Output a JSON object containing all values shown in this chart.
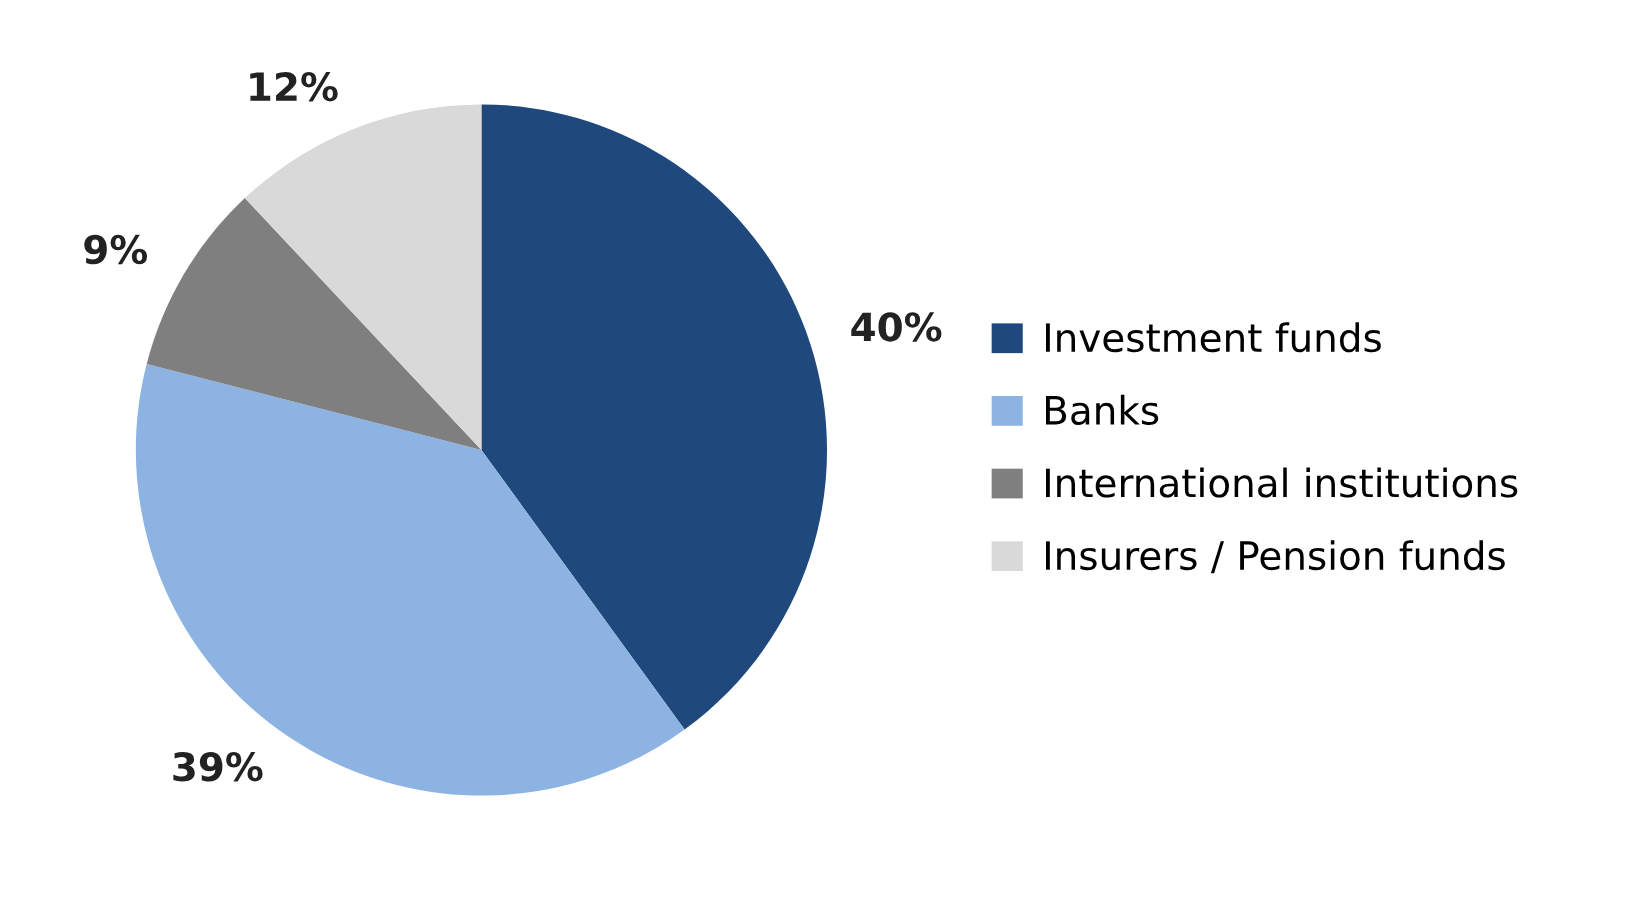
{
  "chart_data": {
    "type": "pie",
    "categories": [
      "Investment funds",
      "Banks",
      "International institutions",
      "Insurers / Pension funds"
    ],
    "values": [
      40,
      39,
      9,
      12
    ],
    "value_labels": [
      "40%",
      "39%",
      "9%",
      "12%"
    ],
    "colors": [
      "#1f487c",
      "#8db3e2",
      "#7f7f7f",
      "#d9d9d9"
    ],
    "legend": "right"
  }
}
